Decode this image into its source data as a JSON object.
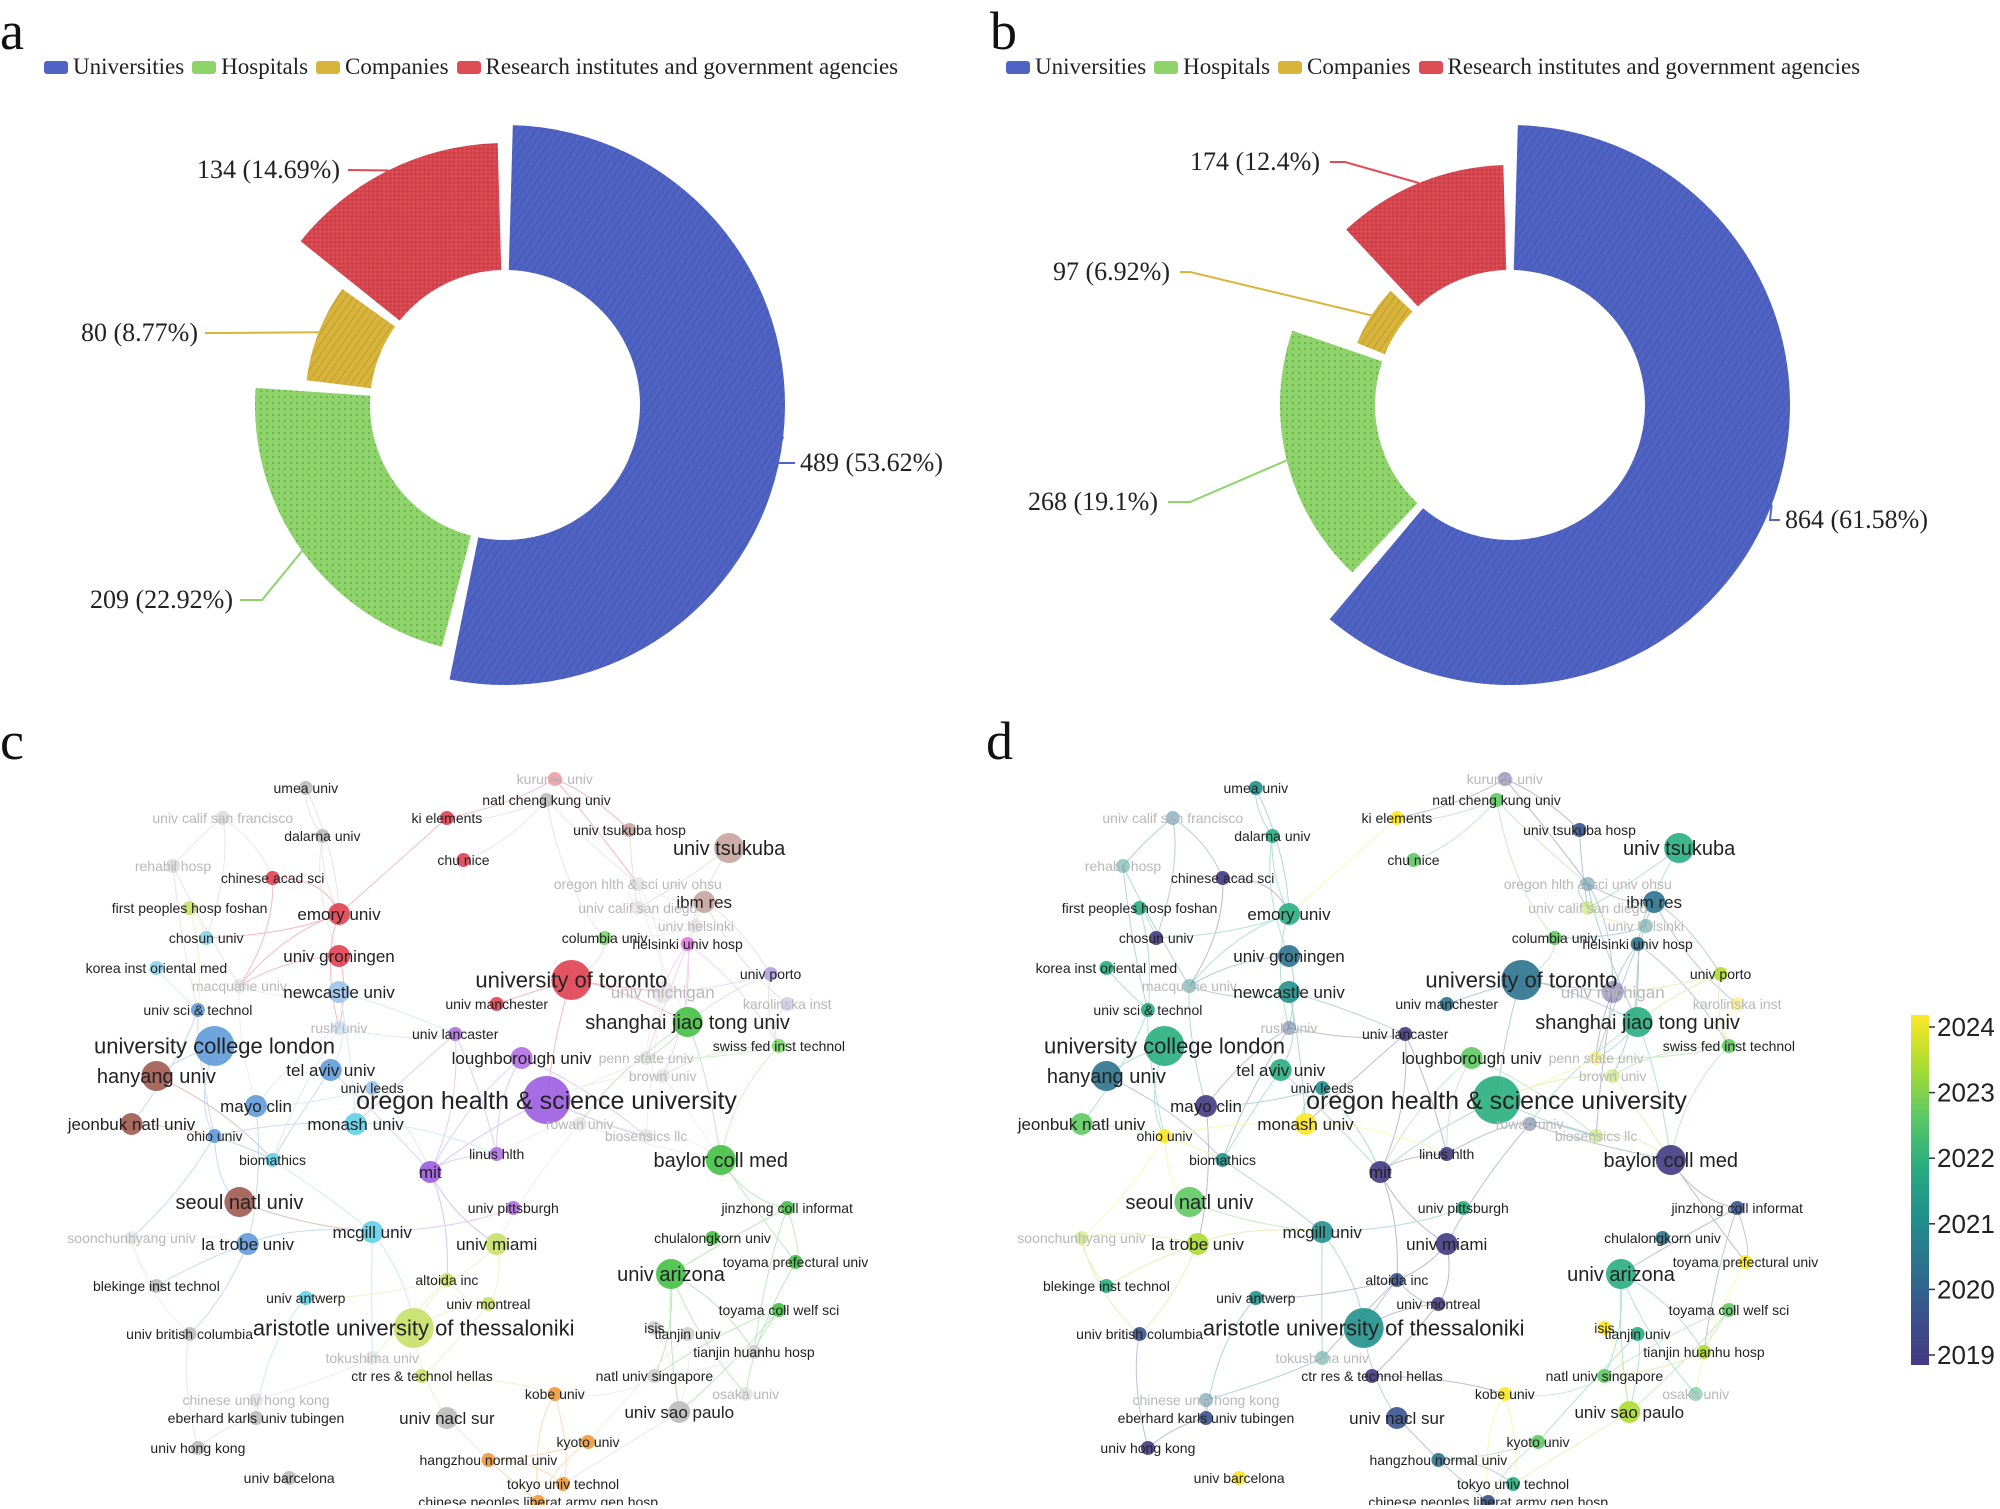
{
  "panels": {
    "a": "a",
    "b": "b",
    "c": "c",
    "d": "d"
  },
  "chart_data": [
    {
      "panel": "a",
      "type": "pie",
      "variant": "donut",
      "legend_position": "top",
      "categories": [
        "Universities",
        "Hospitals",
        "Companies",
        "Research institutes and government agencies"
      ],
      "values": [
        489,
        209,
        80,
        134
      ],
      "labels": [
        "489 (53.62%)",
        "209 (22.92%)",
        "80 (8.77%)",
        "134 (14.69%)"
      ],
      "colors": [
        "#4f63c4",
        "#8fd46a",
        "#d9b43a",
        "#de4d55"
      ]
    },
    {
      "panel": "b",
      "type": "pie",
      "variant": "donut",
      "legend_position": "top",
      "categories": [
        "Universities",
        "Hospitals",
        "Companies",
        "Research institutes and government agencies"
      ],
      "values": [
        864,
        268,
        97,
        174
      ],
      "labels": [
        "864 (61.58%)",
        "268 (19.1%)",
        "97 (6.92%)",
        "174 (12.4%)"
      ],
      "colors": [
        "#4f63c4",
        "#8fd46a",
        "#d9b43a",
        "#de4d55"
      ]
    },
    {
      "panel": "c",
      "type": "scatter",
      "variant": "co-authorship network (clusters)",
      "nodes": [
        {
          "label": "umea univ",
          "x": 0.26,
          "y": 0.03,
          "s": 1,
          "c": "#bbbbbb"
        },
        {
          "label": "kurume univ",
          "x": 0.56,
          "y": 0.015,
          "s": 1,
          "c": "#e04050",
          "faded": true
        },
        {
          "label": "natl cheng kung univ",
          "x": 0.55,
          "y": 0.05,
          "s": 1,
          "c": "#bbbbbb"
        },
        {
          "label": "univ calif san francisco",
          "x": 0.16,
          "y": 0.08,
          "s": 1,
          "c": "#bbbbbb",
          "faded": true
        },
        {
          "label": "ki elements",
          "x": 0.43,
          "y": 0.08,
          "s": 1,
          "c": "#e04050"
        },
        {
          "label": "dalarna univ",
          "x": 0.28,
          "y": 0.11,
          "s": 1,
          "c": "#bbbbbb"
        },
        {
          "label": "univ tsukuba hosp",
          "x": 0.65,
          "y": 0.1,
          "s": 1,
          "c": "#c7a49d"
        },
        {
          "label": "univ tsukuba",
          "x": 0.77,
          "y": 0.13,
          "s": 3,
          "c": "#c7a49d"
        },
        {
          "label": "rehabil hosp",
          "x": 0.1,
          "y": 0.16,
          "s": 1,
          "c": "#bbbbbb",
          "faded": true
        },
        {
          "label": "chinese acad sci",
          "x": 0.22,
          "y": 0.18,
          "s": 1,
          "c": "#e04050"
        },
        {
          "label": "chu nice",
          "x": 0.45,
          "y": 0.15,
          "s": 1,
          "c": "#e04050"
        },
        {
          "label": "oregon hlth & sci univ ohsu",
          "x": 0.66,
          "y": 0.19,
          "s": 1,
          "c": "#cfcfcf",
          "faded": true
        },
        {
          "label": "ibm res",
          "x": 0.74,
          "y": 0.22,
          "s": 2,
          "c": "#c7a49d"
        },
        {
          "label": "first peoples hosp foshan",
          "x": 0.12,
          "y": 0.23,
          "s": 1,
          "c": "#c8e068"
        },
        {
          "label": "emory univ",
          "x": 0.3,
          "y": 0.24,
          "s": 2,
          "c": "#e04050"
        },
        {
          "label": "univ calif san diego",
          "x": 0.66,
          "y": 0.23,
          "s": 1,
          "c": "#cfcfcf",
          "faded": true
        },
        {
          "label": "univ helsinki",
          "x": 0.73,
          "y": 0.26,
          "s": 1,
          "c": "#cfcfcf",
          "faded": true
        },
        {
          "label": "chosun univ",
          "x": 0.14,
          "y": 0.28,
          "s": 1,
          "c": "#8dd3e8"
        },
        {
          "label": "columbia univ",
          "x": 0.62,
          "y": 0.28,
          "s": 1,
          "c": "#7cd86a"
        },
        {
          "label": "helsinki univ hosp",
          "x": 0.72,
          "y": 0.29,
          "s": 1,
          "c": "#e07be0"
        },
        {
          "label": "univ groningen",
          "x": 0.3,
          "y": 0.31,
          "s": 2,
          "c": "#e04050"
        },
        {
          "label": "korea inst oriental med",
          "x": 0.08,
          "y": 0.33,
          "s": 1,
          "c": "#8dd3e8"
        },
        {
          "label": "university of toronto",
          "x": 0.58,
          "y": 0.35,
          "s": 4,
          "c": "#e04050"
        },
        {
          "label": "univ porto",
          "x": 0.82,
          "y": 0.34,
          "s": 1,
          "c": "#b0a0e0"
        },
        {
          "label": "macquarie univ",
          "x": 0.18,
          "y": 0.36,
          "s": 1,
          "c": "#cfcfcf",
          "faded": true
        },
        {
          "label": "newcastle univ",
          "x": 0.3,
          "y": 0.37,
          "s": 2,
          "c": "#9ec3ea"
        },
        {
          "label": "univ michigan",
          "x": 0.69,
          "y": 0.37,
          "s": 2,
          "c": "#cfcfcf",
          "faded": true
        },
        {
          "label": "univ manchester",
          "x": 0.49,
          "y": 0.39,
          "s": 1,
          "c": "#e04050"
        },
        {
          "label": "karolinska inst",
          "x": 0.84,
          "y": 0.39,
          "s": 1,
          "c": "#b0a0e0",
          "faded": true
        },
        {
          "label": "univ sci & technol",
          "x": 0.13,
          "y": 0.4,
          "s": 1,
          "c": "#5f9ad8"
        },
        {
          "label": "rush univ",
          "x": 0.3,
          "y": 0.43,
          "s": 1,
          "c": "#9ec3ea",
          "faded": true
        },
        {
          "label": "shanghai jiao tong univ",
          "x": 0.72,
          "y": 0.42,
          "s": 3,
          "c": "#44c044"
        },
        {
          "label": "university college london",
          "x": 0.15,
          "y": 0.46,
          "s": 4,
          "c": "#5f9ad8"
        },
        {
          "label": "univ lancaster",
          "x": 0.44,
          "y": 0.44,
          "s": 1,
          "c": "#b070e0"
        },
        {
          "label": "swiss fed inst technol",
          "x": 0.83,
          "y": 0.46,
          "s": 1,
          "c": "#7cd86a"
        },
        {
          "label": "loughborough univ",
          "x": 0.52,
          "y": 0.48,
          "s": 2,
          "c": "#b070e0"
        },
        {
          "label": "penn state univ",
          "x": 0.67,
          "y": 0.48,
          "s": 1,
          "c": "#cfcfcf",
          "faded": true
        },
        {
          "label": "hanyang univ",
          "x": 0.08,
          "y": 0.51,
          "s": 3,
          "c": "#a05a50"
        },
        {
          "label": "tel aviv univ",
          "x": 0.29,
          "y": 0.5,
          "s": 2,
          "c": "#5f9ad8"
        },
        {
          "label": "brown univ",
          "x": 0.69,
          "y": 0.51,
          "s": 1,
          "c": "#cfcfcf",
          "faded": true
        },
        {
          "label": "univ leeds",
          "x": 0.34,
          "y": 0.53,
          "s": 1,
          "c": "#9ec3ea"
        },
        {
          "label": "oregon health & science university",
          "x": 0.55,
          "y": 0.55,
          "s": 5,
          "c": "#9c5ce0"
        },
        {
          "label": "mayo clin",
          "x": 0.2,
          "y": 0.56,
          "s": 2,
          "c": "#5f9ad8"
        },
        {
          "label": "jeonbuk natl univ",
          "x": 0.05,
          "y": 0.59,
          "s": 2,
          "c": "#a05a50"
        },
        {
          "label": "ohio univ",
          "x": 0.15,
          "y": 0.61,
          "s": 1,
          "c": "#5f9ad8"
        },
        {
          "label": "monash univ",
          "x": 0.32,
          "y": 0.59,
          "s": 2,
          "c": "#5fd0e8"
        },
        {
          "label": "rowan univ",
          "x": 0.59,
          "y": 0.59,
          "s": 1,
          "c": "#cfcfcf",
          "faded": true
        },
        {
          "label": "biosensics llc",
          "x": 0.67,
          "y": 0.61,
          "s": 1,
          "c": "#cfcfcf",
          "faded": true
        },
        {
          "label": "biomathics",
          "x": 0.22,
          "y": 0.65,
          "s": 1,
          "c": "#5fd0e8"
        },
        {
          "label": "linus hlth",
          "x": 0.49,
          "y": 0.64,
          "s": 1,
          "c": "#b070e0"
        },
        {
          "label": "mit",
          "x": 0.41,
          "y": 0.67,
          "s": 2,
          "c": "#9c5ce0"
        },
        {
          "label": "baylor coll med",
          "x": 0.76,
          "y": 0.65,
          "s": 3,
          "c": "#44c044"
        },
        {
          "label": "seoul natl univ",
          "x": 0.18,
          "y": 0.72,
          "s": 3,
          "c": "#a05a50"
        },
        {
          "label": "univ pittsburgh",
          "x": 0.51,
          "y": 0.73,
          "s": 1,
          "c": "#b070e0"
        },
        {
          "label": "jinzhong coll informat",
          "x": 0.84,
          "y": 0.73,
          "s": 1,
          "c": "#44c044"
        },
        {
          "label": "soonchunhyang univ",
          "x": 0.05,
          "y": 0.78,
          "s": 1,
          "c": "#cfcfcf",
          "faded": true
        },
        {
          "label": "la trobe univ",
          "x": 0.19,
          "y": 0.79,
          "s": 2,
          "c": "#5f9ad8"
        },
        {
          "label": "mcgill univ",
          "x": 0.34,
          "y": 0.77,
          "s": 2,
          "c": "#5fd0e8"
        },
        {
          "label": "univ miami",
          "x": 0.49,
          "y": 0.79,
          "s": 2,
          "c": "#c8e068"
        },
        {
          "label": "chulalongkorn univ",
          "x": 0.75,
          "y": 0.78,
          "s": 1,
          "c": "#44c044"
        },
        {
          "label": "toyama prefectural univ",
          "x": 0.85,
          "y": 0.82,
          "s": 1,
          "c": "#44c044"
        },
        {
          "label": "blekinge inst technol",
          "x": 0.08,
          "y": 0.86,
          "s": 1,
          "c": "#bbbbbb"
        },
        {
          "label": "altoida inc",
          "x": 0.43,
          "y": 0.85,
          "s": 1,
          "c": "#c8e068"
        },
        {
          "label": "univ arizona",
          "x": 0.7,
          "y": 0.84,
          "s": 3,
          "c": "#44c044"
        },
        {
          "label": "univ antwerp",
          "x": 0.26,
          "y": 0.88,
          "s": 1,
          "c": "#5fd0e8"
        },
        {
          "label": "univ montreal",
          "x": 0.48,
          "y": 0.89,
          "s": 1,
          "c": "#c8e068"
        },
        {
          "label": "toyama coll welf sci",
          "x": 0.83,
          "y": 0.9,
          "s": 1,
          "c": "#44c044"
        },
        {
          "label": "aristotle university of thessaloniki",
          "x": 0.39,
          "y": 0.93,
          "s": 4,
          "c": "#c8e068"
        },
        {
          "label": "isis",
          "x": 0.68,
          "y": 0.93,
          "s": 1,
          "c": "#cfcfcf"
        },
        {
          "label": "tianjin univ",
          "x": 0.72,
          "y": 0.94,
          "s": 1,
          "c": "#cfcfcf"
        },
        {
          "label": "univ british columbia",
          "x": 0.12,
          "y": 0.94,
          "s": 1,
          "c": "#bbbbbb"
        },
        {
          "label": "tianjin huanhu hosp",
          "x": 0.8,
          "y": 0.97,
          "s": 1,
          "c": "#cfcfcf"
        },
        {
          "label": "tokushima univ",
          "x": 0.34,
          "y": 0.98,
          "s": 1,
          "c": "#cfcfcf",
          "faded": true
        },
        {
          "label": "ctr res & technol hellas",
          "x": 0.4,
          "y": 1.01,
          "s": 1,
          "c": "#c8e068"
        },
        {
          "label": "natl univ singapore",
          "x": 0.68,
          "y": 1.01,
          "s": 1,
          "c": "#cfcfcf"
        },
        {
          "label": "chinese univ hong kong",
          "x": 0.2,
          "y": 1.05,
          "s": 1,
          "c": "#cfcfcf",
          "faded": true
        },
        {
          "label": "kobe univ",
          "x": 0.56,
          "y": 1.04,
          "s": 1,
          "c": "#f09a3a"
        },
        {
          "label": "osaka univ",
          "x": 0.79,
          "y": 1.04,
          "s": 1,
          "c": "#cfcfcf",
          "faded": true
        },
        {
          "label": "eberhard karls univ tubingen",
          "x": 0.2,
          "y": 1.08,
          "s": 1,
          "c": "#bbbbbb"
        },
        {
          "label": "univ nacl sur",
          "x": 0.43,
          "y": 1.08,
          "s": 2,
          "c": "#bbbbbb"
        },
        {
          "label": "univ sao paulo",
          "x": 0.71,
          "y": 1.07,
          "s": 2,
          "c": "#bbbbbb"
        },
        {
          "label": "univ hong kong",
          "x": 0.13,
          "y": 1.13,
          "s": 1,
          "c": "#bbbbbb"
        },
        {
          "label": "kyoto univ",
          "x": 0.6,
          "y": 1.12,
          "s": 1,
          "c": "#f09a3a"
        },
        {
          "label": "hangzhou normal univ",
          "x": 0.48,
          "y": 1.15,
          "s": 1,
          "c": "#f09a3a"
        },
        {
          "label": "univ barcelona",
          "x": 0.24,
          "y": 1.18,
          "s": 1,
          "c": "#bbbbbb"
        },
        {
          "label": "tokyo univ technol",
          "x": 0.57,
          "y": 1.19,
          "s": 1,
          "c": "#f09a3a"
        },
        {
          "label": "chinese peoples liberat army gen hosp",
          "x": 0.54,
          "y": 1.22,
          "s": 1,
          "c": "#f09a3a"
        }
      ]
    },
    {
      "panel": "d",
      "type": "scatter",
      "variant": "co-authorship network (overlay by year)",
      "colorbar": {
        "ticks": [
          "2024",
          "2023",
          "2022",
          "2021",
          "2020",
          "2019"
        ]
      }
    }
  ]
}
